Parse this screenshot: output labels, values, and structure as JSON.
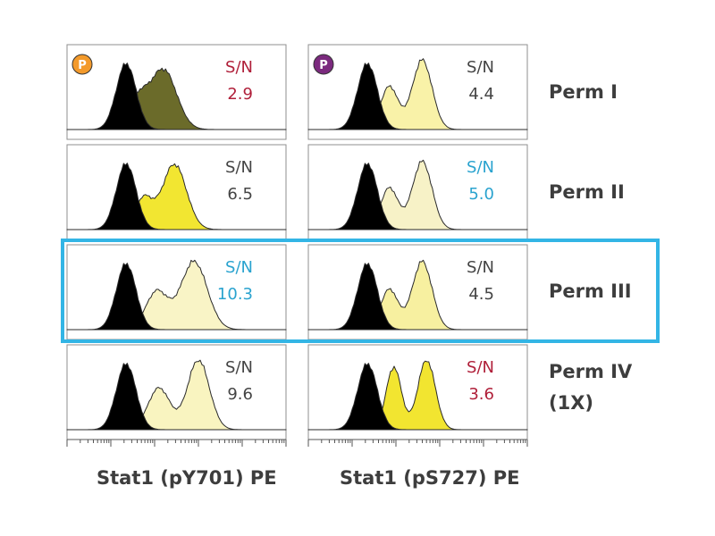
{
  "colors": {
    "neutral": "#444444",
    "red": "#b0203a",
    "blue": "#2aa3cf",
    "unstained": "#000000",
    "highlight": "#33b5e5",
    "badge_orange": "#f39a2b",
    "badge_purple": "#7b2a7e"
  },
  "highlighted_row": 2,
  "badges": [
    {
      "column": 0,
      "text": "P",
      "color": "#f39a2b"
    },
    {
      "column": 1,
      "text": "P",
      "color": "#7b2a7e"
    }
  ],
  "chart_data": {
    "type": "histogram-grid",
    "title": "",
    "columns": [
      {
        "label": "Stat1 (pY701) PE"
      },
      {
        "label": "Stat1 (pS727) PE"
      }
    ],
    "rows": [
      {
        "label_lines": [
          "Perm I"
        ]
      },
      {
        "label_lines": [
          "Perm II"
        ]
      },
      {
        "label_lines": [
          "Perm III"
        ]
      },
      {
        "label_lines": [
          "Perm IV",
          "(1X)"
        ]
      }
    ],
    "sn_label": "S/N",
    "cells": [
      [
        {
          "sn_value": "2.9",
          "sn_color": "red",
          "fill": "#6b6b2a",
          "peaks": [
            {
              "x": 0.32,
              "y": 0.42,
              "w": 0.045
            },
            {
              "x": 0.44,
              "y": 0.86,
              "w": 0.06
            }
          ]
        },
        {
          "sn_value": "4.4",
          "sn_color": "neutral",
          "fill": "#f9f2a8",
          "peaks": [
            {
              "x": 0.37,
              "y": 0.62,
              "w": 0.04
            },
            {
              "x": 0.52,
              "y": 1.0,
              "w": 0.045
            }
          ]
        }
      ],
      [
        {
          "sn_value": "6.5",
          "sn_color": "neutral",
          "fill": "#f2e631",
          "peaks": [
            {
              "x": 0.35,
              "y": 0.45,
              "w": 0.04
            },
            {
              "x": 0.49,
              "y": 0.94,
              "w": 0.055
            }
          ]
        },
        {
          "sn_value": "5.0",
          "sn_color": "blue",
          "fill": "#f7f2c7",
          "peaks": [
            {
              "x": 0.37,
              "y": 0.6,
              "w": 0.04
            },
            {
              "x": 0.52,
              "y": 0.98,
              "w": 0.045
            }
          ]
        }
      ],
      [
        {
          "sn_value": "10.3",
          "sn_color": "blue",
          "fill": "#f9f4c6",
          "peaks": [
            {
              "x": 0.41,
              "y": 0.55,
              "w": 0.05
            },
            {
              "x": 0.58,
              "y": 0.98,
              "w": 0.06
            }
          ]
        },
        {
          "sn_value": "4.5",
          "sn_color": "neutral",
          "fill": "#f7f0a0",
          "peaks": [
            {
              "x": 0.37,
              "y": 0.58,
              "w": 0.04
            },
            {
              "x": 0.52,
              "y": 0.98,
              "w": 0.045
            }
          ]
        }
      ],
      [
        {
          "sn_value": "9.6",
          "sn_color": "neutral",
          "fill": "#f9f4c0",
          "peaks": [
            {
              "x": 0.42,
              "y": 0.6,
              "w": 0.05
            },
            {
              "x": 0.6,
              "y": 1.0,
              "w": 0.05
            }
          ]
        },
        {
          "sn_value": "3.6",
          "sn_color": "red",
          "fill": "#f2e530",
          "peaks": [
            {
              "x": 0.39,
              "y": 0.9,
              "w": 0.035
            },
            {
              "x": 0.54,
              "y": 1.0,
              "w": 0.04
            }
          ]
        }
      ]
    ],
    "unstained": [
      {
        "x": 0.27,
        "y": 0.95,
        "w": 0.045
      },
      {
        "x": 0.27,
        "y": 0.95,
        "w": 0.045
      }
    ],
    "x_scale": "log",
    "grid": false
  }
}
